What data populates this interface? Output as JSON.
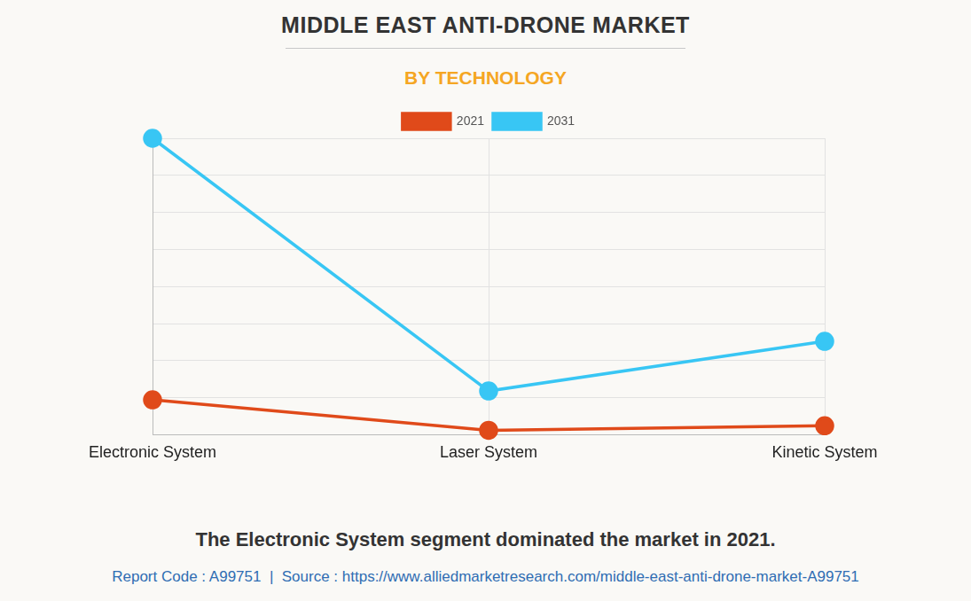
{
  "chart_data": {
    "type": "line",
    "title": "MIDDLE EAST ANTI-DRONE MARKET",
    "subtitle": "BY TECHNOLOGY",
    "caption": "The Electronic System segment dominated the market in 2021.",
    "source_note": "Report Code : A99751  |  Source : https://www.alliedmarketresearch.com/middle-east-anti-drone-market-A99751",
    "categories": [
      "Electronic System",
      "Laser System",
      "Kinetic System"
    ],
    "series": [
      {
        "name": "2021",
        "color": "#e04a1a",
        "values": [
          0.94,
          0.12,
          0.24
        ],
        "marker": "circle"
      },
      {
        "name": "2031",
        "color": "#38c6f4",
        "values": [
          8.0,
          1.18,
          2.52
        ],
        "marker": "circle"
      }
    ],
    "ylim": [
      0,
      8
    ],
    "yticks": [
      0,
      1,
      2,
      3,
      4,
      5,
      6,
      7,
      8
    ],
    "grid": true,
    "legend": "top",
    "tick_labels": "x"
  }
}
